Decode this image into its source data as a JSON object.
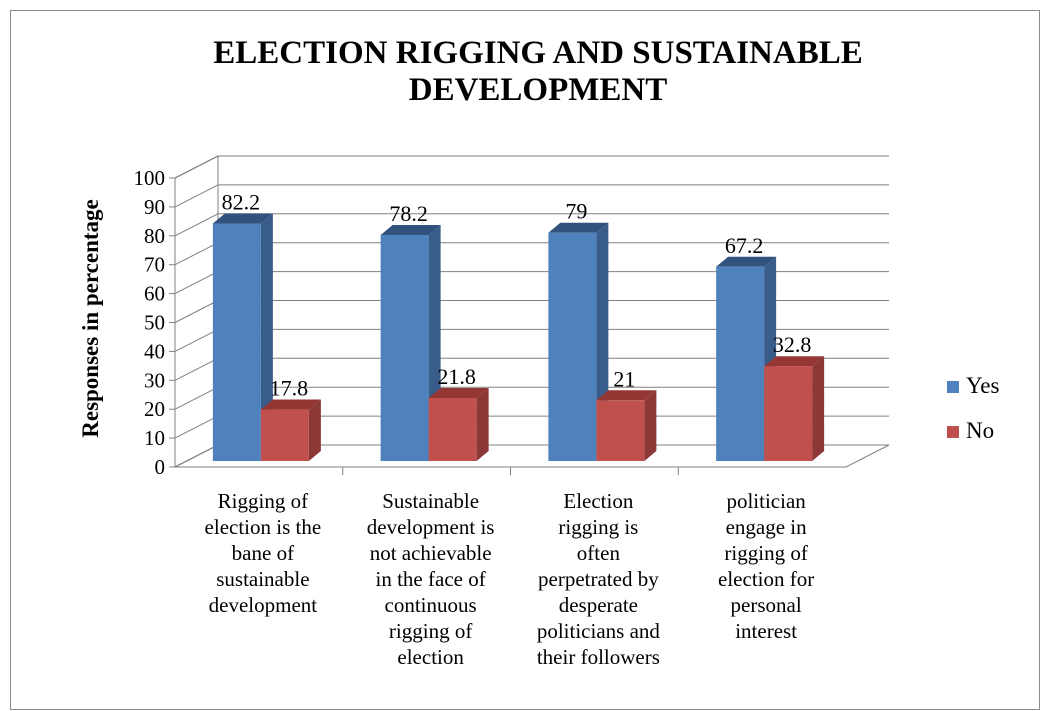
{
  "chart_data": {
    "type": "bar",
    "title": "ELECTION RIGGING AND SUSTAINABLE DEVELOPMENT",
    "title_lines": [
      "ELECTION RIGGING AND SUSTAINABLE",
      "DEVELOPMENT"
    ],
    "ylabel": "Responses in percentage",
    "xlabel": "",
    "ylim": [
      0,
      100
    ],
    "yticks": [
      0,
      10,
      20,
      30,
      40,
      50,
      60,
      70,
      80,
      90,
      100
    ],
    "grid": true,
    "legend_position": "right",
    "categories": [
      "Rigging of election is the bane of sustainable development",
      "Sustainable development is not achievable in the face of continuous rigging of election",
      "Election rigging  is often perpetrated by desperate politicians and their followers",
      "politician engage in rigging of election for personal interest"
    ],
    "category_lines": [
      [
        "Rigging of",
        "election is the",
        "bane of",
        "sustainable",
        "development"
      ],
      [
        "Sustainable",
        "development is",
        "not achievable",
        "in the face of",
        "continuous",
        "rigging of",
        "election"
      ],
      [
        "Election",
        "rigging  is",
        "often",
        "perpetrated by",
        "desperate",
        "politicians and",
        "their followers"
      ],
      [
        "politician",
        "engage in",
        "rigging of",
        "election for",
        "personal",
        "interest"
      ]
    ],
    "series": [
      {
        "name": "Yes",
        "values": [
          82.2,
          78.2,
          79,
          67.2
        ],
        "labels": [
          "82.2",
          "78.2",
          "79",
          "67.2"
        ],
        "color": "#4f81bd",
        "side_color": "#385d8a",
        "top_color": "#31527c"
      },
      {
        "name": "No",
        "values": [
          17.8,
          21.8,
          21,
          32.8
        ],
        "labels": [
          "17.8",
          "21.8",
          "21",
          "32.8"
        ],
        "color": "#c0504d",
        "side_color": "#8c3836",
        "top_color": "#943634"
      }
    ]
  }
}
